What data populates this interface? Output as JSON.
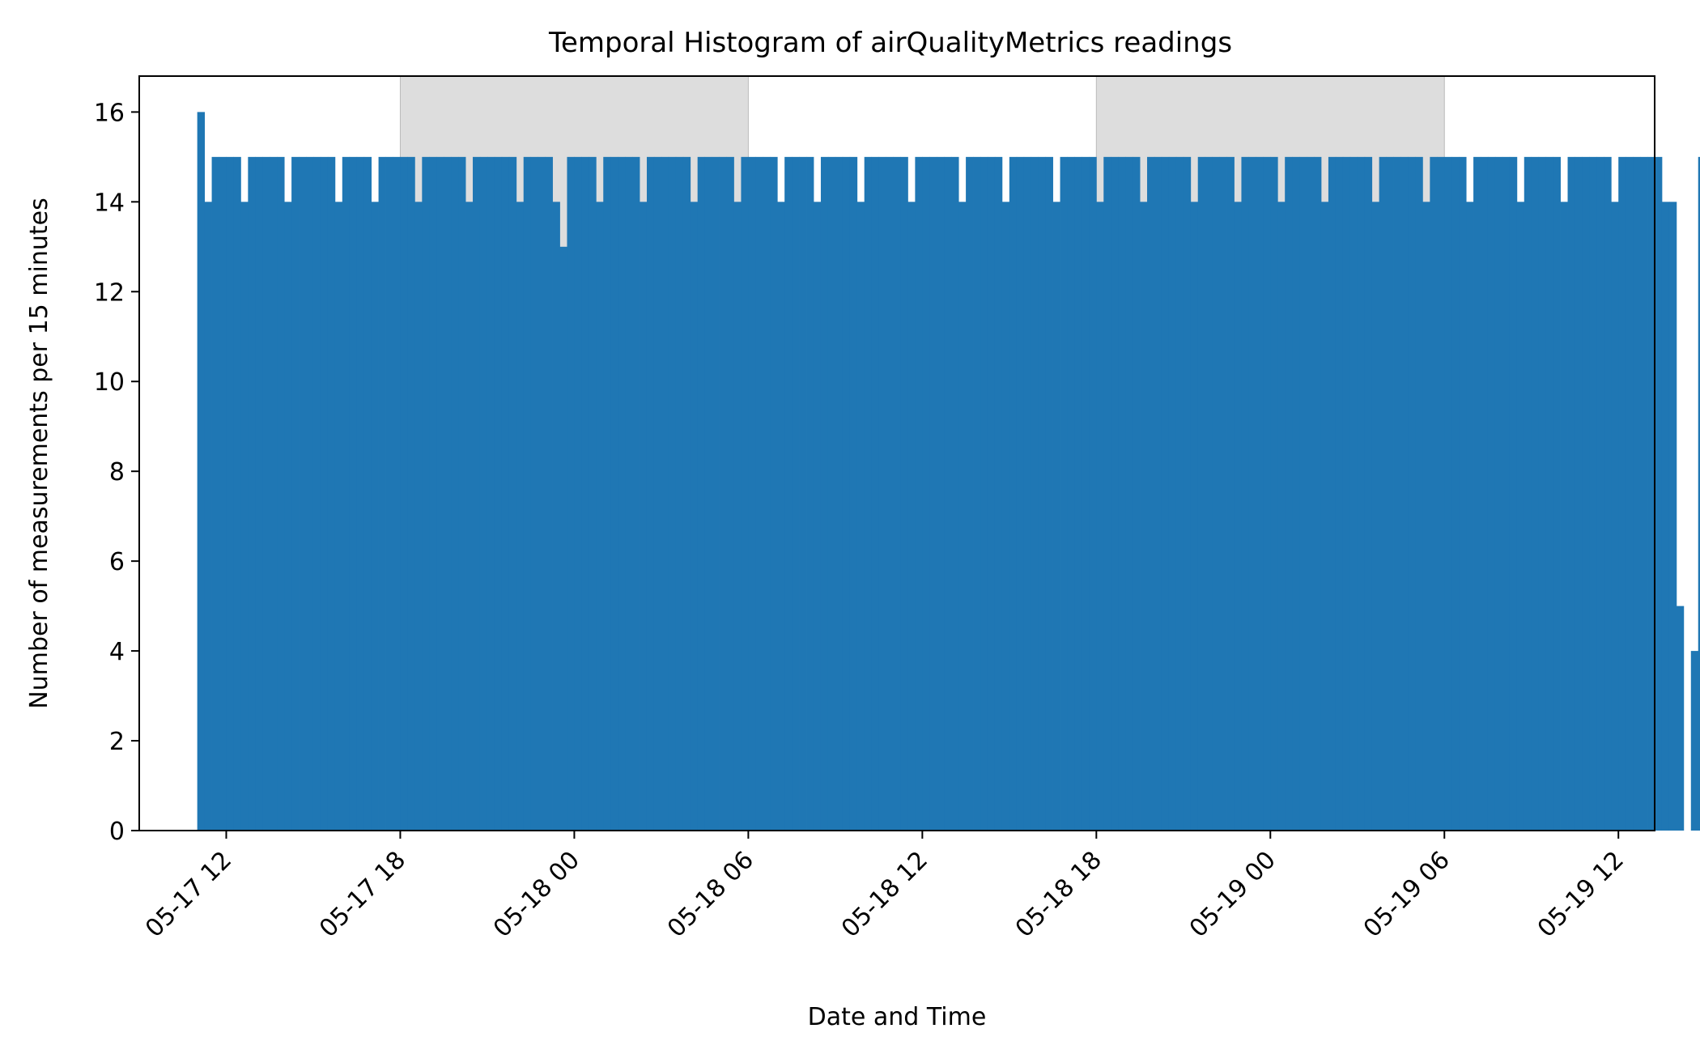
{
  "chart_data": {
    "type": "bar",
    "title": "Temporal Histogram of airQualityMetrics readings",
    "xlabel": "Date and Time",
    "ylabel": "Number of measurements per 15 minutes",
    "bin_minutes": 15,
    "xlim": [
      "2017-05-17T09:00",
      "2017-05-19T13:15"
    ],
    "ylim": [
      0,
      16.8
    ],
    "yticks": [
      0,
      2,
      4,
      6,
      8,
      10,
      12,
      14,
      16
    ],
    "xticks": [
      {
        "time": "2017-05-17T12:00",
        "label": "05-17 12"
      },
      {
        "time": "2017-05-17T18:00",
        "label": "05-17 18"
      },
      {
        "time": "2017-05-18T00:00",
        "label": "05-18 00"
      },
      {
        "time": "2017-05-18T06:00",
        "label": "05-18 06"
      },
      {
        "time": "2017-05-18T12:00",
        "label": "05-18 12"
      },
      {
        "time": "2017-05-18T18:00",
        "label": "05-18 18"
      },
      {
        "time": "2017-05-19T00:00",
        "label": "05-19 00"
      },
      {
        "time": "2017-05-19T06:00",
        "label": "05-19 06"
      },
      {
        "time": "2017-05-19T12:00",
        "label": "05-19 12"
      }
    ],
    "night_shading": [
      {
        "start": "2017-05-17T18:00",
        "end": "2017-05-18T06:00"
      },
      {
        "start": "2017-05-18T18:00",
        "end": "2017-05-19T06:00"
      }
    ],
    "bins_start": "2017-05-17T11:00",
    "values": [
      16,
      14,
      15,
      15,
      15,
      15,
      14,
      15,
      15,
      15,
      15,
      15,
      14,
      15,
      15,
      15,
      15,
      15,
      15,
      14,
      15,
      15,
      15,
      15,
      14,
      15,
      15,
      15,
      15,
      15,
      14,
      15,
      15,
      15,
      15,
      15,
      15,
      14,
      15,
      15,
      15,
      15,
      15,
      15,
      14,
      15,
      15,
      15,
      15,
      14,
      13,
      15,
      15,
      15,
      15,
      14,
      15,
      15,
      15,
      15,
      15,
      14,
      15,
      15,
      15,
      15,
      15,
      15,
      14,
      15,
      15,
      15,
      15,
      15,
      14,
      15,
      15,
      15,
      15,
      15,
      14,
      15,
      15,
      15,
      15,
      14,
      15,
      15,
      15,
      15,
      15,
      14,
      15,
      15,
      15,
      15,
      15,
      15,
      14,
      15,
      15,
      15,
      15,
      15,
      15,
      14,
      15,
      15,
      15,
      15,
      15,
      14,
      15,
      15,
      15,
      15,
      15,
      15,
      14,
      15,
      15,
      15,
      15,
      15,
      14,
      15,
      15,
      15,
      15,
      15,
      14,
      15,
      15,
      15,
      15,
      15,
      15,
      14,
      15,
      15,
      15,
      15,
      15,
      14,
      15,
      15,
      15,
      15,
      15,
      14,
      15,
      15,
      15,
      15,
      15,
      14,
      15,
      15,
      15,
      15,
      15,
      15,
      14,
      15,
      15,
      15,
      15,
      15,
      15,
      14,
      15,
      15,
      15,
      15,
      15,
      14,
      15,
      15,
      15,
      15,
      15,
      15,
      14,
      15,
      15,
      15,
      15,
      15,
      14,
      15,
      15,
      15,
      15,
      15,
      15,
      14,
      15,
      15,
      15,
      15,
      15,
      15,
      14,
      14,
      5,
      0,
      4,
      15
    ],
    "colors": {
      "bar": "#1f77b4",
      "night_shading": "#dddddd",
      "axes": "#000000",
      "background": "#ffffff"
    }
  }
}
